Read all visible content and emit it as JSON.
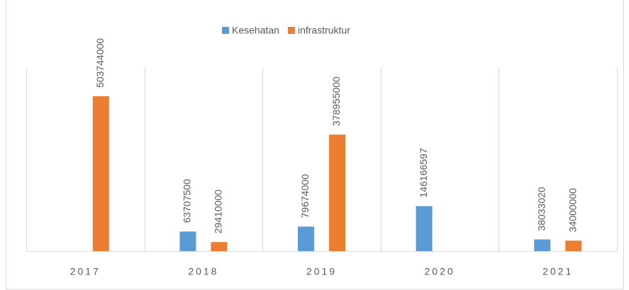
{
  "chart_data": {
    "type": "bar",
    "categories": [
      "2017",
      "2018",
      "2019",
      "2020",
      "2021"
    ],
    "series": [
      {
        "name": "Kesehatan",
        "color": "#5b9bd5",
        "values": [
          null,
          63707500,
          79674000,
          146166597,
          38033020
        ]
      },
      {
        "name": "infrastruktur",
        "color": "#ed7d31",
        "values": [
          503744000,
          29410000,
          378955000,
          null,
          34000000
        ]
      }
    ],
    "legend": "top"
  }
}
